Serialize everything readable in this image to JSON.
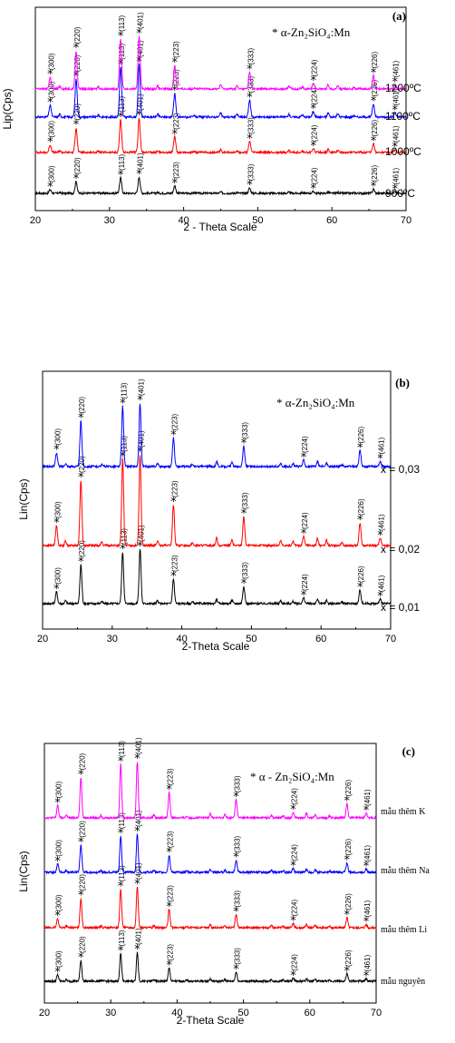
{
  "chart_data": [
    {
      "type": "line",
      "panel": "(a)",
      "legend_text": "* α-Zn₂SiO₄:Mn",
      "xlabel": "2 - Theta Scale",
      "ylabel": "Lip(Cps)",
      "xlim": [
        20,
        70
      ],
      "xticks": [
        20,
        30,
        40,
        50,
        60,
        70
      ],
      "series": [
        {
          "name": "900°C",
          "label": "900ºC",
          "color": "#000000",
          "scale": 0.55
        },
        {
          "name": "1000°C",
          "label": "1000ºC",
          "color": "#ff0000",
          "scale": 0.75
        },
        {
          "name": "1100°C",
          "label": "1100ºC",
          "color": "#0000ff",
          "scale": 0.95
        },
        {
          "name": "1200°C",
          "label": "1200ºC",
          "color": "#ff00ff",
          "scale": 1.0
        }
      ],
      "peak_labels": [
        "(300)",
        "(220)",
        "(113)",
        "(401)",
        "(223)",
        "(333)",
        "(224)",
        "(226)",
        "(461)"
      ]
    },
    {
      "type": "line",
      "panel": "(b)",
      "legend_text": "* α-Zn₂SiO₄:Mn",
      "xlabel": "2-Theta Scale",
      "ylabel": "Lin(Cps)",
      "xlim": [
        20,
        70
      ],
      "xticks": [
        20,
        30,
        40,
        50,
        60,
        70
      ],
      "series": [
        {
          "name": "x = 0,01",
          "label": "x = 0,01",
          "color": "#000000",
          "scale": 0.8
        },
        {
          "name": "x = 0,02",
          "label": "x = 0,02",
          "color": "#ff0000",
          "scale": 1.0
        },
        {
          "name": "x = 0,03",
          "label": "x = 0,03",
          "color": "#0000ff",
          "scale": 0.6
        }
      ],
      "peak_labels": [
        "(300)",
        "(220)",
        "(113)",
        "(401)",
        "(223)",
        "(333)",
        "(224)",
        "(226)",
        "(461)"
      ]
    },
    {
      "type": "line",
      "panel": "(c)",
      "legend_text": "* α - Zn₂SiO₄:Mn",
      "xlabel": "2-Theta Scale",
      "ylabel": "Lin(Cps)",
      "xlim": [
        20,
        70
      ],
      "xticks": [
        20,
        30,
        40,
        50,
        60,
        70
      ],
      "series": [
        {
          "name": "mẫu nguyên",
          "label": "mẫu nguyên",
          "color": "#000000",
          "scale": 0.6
        },
        {
          "name": "mẫu thêm Li",
          "label": "mẫu thêm Li",
          "color": "#ff0000",
          "scale": 0.65
        },
        {
          "name": "mẫu thêm Na",
          "label": "mẫu thêm Na",
          "color": "#0000ff",
          "scale": 0.65
        },
        {
          "name": "mẫu thêm K",
          "label": "mẫu thêm K",
          "color": "#ff00ff",
          "scale": 0.85
        }
      ],
      "peak_labels": [
        "(300)",
        "(220)",
        "(113)",
        "(401)",
        "(223)",
        "(333)",
        "(224)",
        "(226)",
        "(461)"
      ]
    }
  ],
  "peaks": [
    {
      "two_theta": 22.0,
      "hkl": "(300)",
      "rel": 0.22
    },
    {
      "two_theta": 25.5,
      "hkl": "(220)",
      "rel": 0.72
    },
    {
      "two_theta": 31.5,
      "hkl": "(113)",
      "rel": 0.95
    },
    {
      "two_theta": 34.0,
      "hkl": "(401)",
      "rel": 1.0
    },
    {
      "two_theta": 38.8,
      "hkl": "(223)",
      "rel": 0.45
    },
    {
      "two_theta": 48.9,
      "hkl": "(333)",
      "rel": 0.32
    },
    {
      "two_theta": 57.5,
      "hkl": "(224)",
      "rel": 0.1
    },
    {
      "two_theta": 65.6,
      "hkl": "(226)",
      "rel": 0.25
    },
    {
      "two_theta": 68.5,
      "hkl": "(461)",
      "rel": 0.08
    }
  ]
}
